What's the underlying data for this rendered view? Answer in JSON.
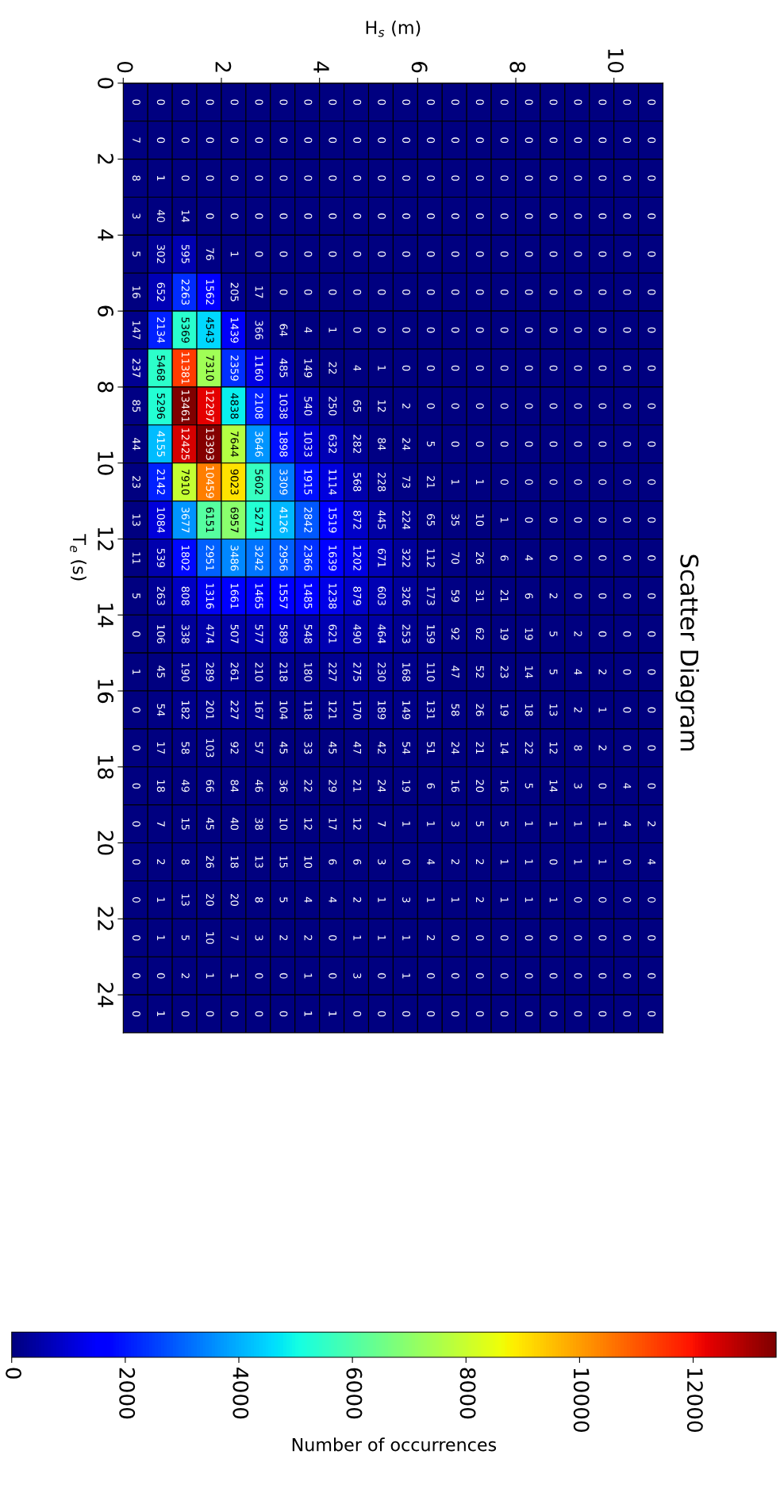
{
  "chart_data": {
    "type": "heatmap",
    "title": "Scatter Diagram",
    "xlabel": "H$_{s}$ (m)",
    "ylabel": "T$_{e}$ (s)",
    "clabel": "Number of occurrences",
    "x": [
      0.25,
      0.75,
      1.25,
      1.75,
      2.25,
      2.75,
      3.25,
      3.75,
      4.25,
      4.75,
      5.25,
      5.75,
      6.25,
      6.75,
      7.25,
      7.75,
      8.25,
      8.75,
      9.25,
      9.75,
      10.25,
      10.75
    ],
    "y": [
      0.5,
      1.5,
      2.5,
      3.5,
      4.5,
      5.5,
      6.5,
      7.5,
      8.5,
      9.5,
      10.5,
      11.5,
      12.5,
      13.5,
      14.5,
      15.5,
      16.5,
      17.5,
      18.5,
      19.5,
      20.5,
      21.5,
      22.5,
      23.5,
      24.5
    ],
    "xlim": [
      0,
      11
    ],
    "xticks": [
      0,
      2,
      4,
      6,
      8,
      10
    ],
    "ylim": [
      25,
      0
    ],
    "yticks": [
      0,
      2,
      4,
      6,
      8,
      10,
      12,
      14,
      16,
      18,
      20,
      22,
      24
    ],
    "clim": [
      0,
      13461
    ],
    "cticks": [
      0,
      2000,
      4000,
      6000,
      8000,
      10000,
      12000
    ],
    "data_labels": true,
    "cells": [
      [
        0,
        0,
        0,
        0,
        0,
        0,
        0,
        0,
        0,
        0,
        0,
        0,
        0,
        0,
        0,
        0,
        0,
        0,
        0,
        0,
        0,
        0
      ],
      [
        7,
        0,
        0,
        0,
        0,
        0,
        0,
        0,
        0,
        0,
        0,
        0,
        0,
        0,
        0,
        0,
        0,
        0,
        0,
        0,
        0,
        0
      ],
      [
        8,
        1,
        0,
        0,
        0,
        0,
        0,
        0,
        0,
        0,
        0,
        0,
        0,
        0,
        0,
        0,
        0,
        0,
        0,
        0,
        0,
        0
      ],
      [
        3,
        40,
        14,
        0,
        0,
        0,
        0,
        0,
        0,
        0,
        0,
        0,
        0,
        0,
        0,
        0,
        0,
        0,
        0,
        0,
        0,
        0
      ],
      [
        5,
        302,
        595,
        76,
        1,
        0,
        0,
        0,
        0,
        0,
        0,
        0,
        0,
        0,
        0,
        0,
        0,
        0,
        0,
        0,
        0,
        0
      ],
      [
        16,
        652,
        2263,
        1562,
        205,
        17,
        0,
        0,
        0,
        0,
        0,
        0,
        0,
        0,
        0,
        0,
        0,
        0,
        0,
        0,
        0,
        0
      ],
      [
        147,
        2134,
        5369,
        4543,
        1439,
        366,
        64,
        4,
        1,
        0,
        0,
        0,
        0,
        0,
        0,
        0,
        0,
        0,
        0,
        0,
        0,
        0
      ],
      [
        237,
        5468,
        11381,
        7310,
        2359,
        1160,
        485,
        149,
        22,
        4,
        1,
        0,
        0,
        0,
        0,
        0,
        0,
        0,
        0,
        0,
        0,
        0
      ],
      [
        85,
        5296,
        13461,
        12297,
        4838,
        2108,
        1038,
        540,
        250,
        65,
        12,
        2,
        0,
        0,
        0,
        0,
        0,
        0,
        0,
        0,
        0,
        0
      ],
      [
        44,
        4155,
        12425,
        13393,
        7644,
        3646,
        1898,
        1033,
        632,
        282,
        84,
        24,
        5,
        0,
        0,
        0,
        0,
        0,
        0,
        0,
        0,
        0
      ],
      [
        23,
        2142,
        7910,
        10459,
        9023,
        5602,
        3309,
        1915,
        1114,
        568,
        228,
        73,
        21,
        1,
        1,
        0,
        0,
        0,
        0,
        0,
        0,
        0
      ],
      [
        13,
        1084,
        3677,
        6151,
        6957,
        5271,
        4126,
        2842,
        1519,
        872,
        445,
        224,
        65,
        35,
        10,
        1,
        0,
        0,
        0,
        0,
        0,
        0
      ],
      [
        11,
        539,
        1802,
        2951,
        3486,
        3242,
        2956,
        2366,
        1639,
        1202,
        671,
        322,
        112,
        70,
        26,
        6,
        4,
        0,
        0,
        0,
        0,
        0
      ],
      [
        5,
        263,
        808,
        1316,
        1661,
        1465,
        1557,
        1485,
        1238,
        879,
        603,
        326,
        173,
        59,
        31,
        21,
        6,
        2,
        0,
        0,
        0,
        0
      ],
      [
        0,
        106,
        338,
        474,
        507,
        577,
        589,
        548,
        621,
        490,
        464,
        253,
        159,
        92,
        62,
        19,
        19,
        5,
        2,
        0,
        0,
        0
      ],
      [
        1,
        45,
        190,
        289,
        261,
        210,
        218,
        180,
        227,
        275,
        230,
        168,
        110,
        47,
        52,
        23,
        14,
        5,
        4,
        2,
        0,
        0
      ],
      [
        0,
        54,
        182,
        201,
        227,
        167,
        104,
        118,
        121,
        170,
        189,
        149,
        131,
        58,
        26,
        19,
        18,
        13,
        2,
        1,
        0,
        0
      ],
      [
        0,
        17,
        58,
        103,
        92,
        57,
        45,
        33,
        45,
        47,
        42,
        54,
        51,
        24,
        21,
        14,
        22,
        12,
        8,
        2,
        0,
        0
      ],
      [
        0,
        18,
        49,
        66,
        84,
        46,
        36,
        22,
        29,
        21,
        24,
        19,
        6,
        16,
        20,
        16,
        5,
        14,
        3,
        0,
        4,
        0
      ],
      [
        0,
        7,
        15,
        45,
        40,
        38,
        10,
        12,
        17,
        12,
        7,
        1,
        1,
        3,
        5,
        5,
        1,
        1,
        1,
        1,
        4,
        2
      ],
      [
        0,
        2,
        8,
        26,
        18,
        13,
        15,
        10,
        6,
        6,
        3,
        0,
        4,
        2,
        2,
        1,
        1,
        0,
        1,
        1,
        0,
        4
      ],
      [
        0,
        1,
        13,
        20,
        20,
        8,
        5,
        4,
        4,
        2,
        1,
        3,
        1,
        1,
        2,
        1,
        1,
        1,
        0,
        0,
        0,
        0
      ],
      [
        0,
        1,
        5,
        10,
        7,
        3,
        2,
        2,
        0,
        1,
        1,
        1,
        2,
        0,
        0,
        0,
        0,
        0,
        0,
        0,
        0,
        0
      ],
      [
        0,
        0,
        2,
        1,
        1,
        0,
        0,
        1,
        0,
        3,
        0,
        1,
        0,
        0,
        0,
        0,
        0,
        0,
        0,
        0,
        0,
        0
      ],
      [
        0,
        1,
        0,
        0,
        0,
        0,
        0,
        1,
        1,
        0,
        0,
        0,
        0,
        0,
        0,
        0,
        0,
        0,
        0,
        0,
        0,
        0
      ]
    ]
  }
}
